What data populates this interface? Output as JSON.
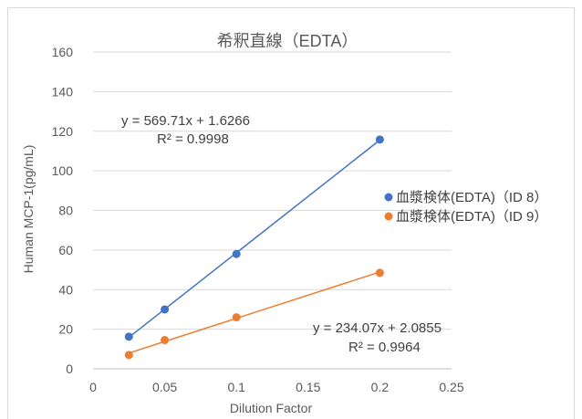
{
  "chart_data": {
    "type": "scatter",
    "title": "希釈直線（EDTA）",
    "xlabel": "Dilution Factor",
    "ylabel": "Human MCP-1(pg/mL)",
    "xlim": [
      0,
      0.25
    ],
    "ylim": [
      0,
      160
    ],
    "xticks": [
      "0",
      "0.05",
      "0.1",
      "0.15",
      "0.2",
      "0.25"
    ],
    "yticks": [
      "0",
      "20",
      "40",
      "60",
      "80",
      "100",
      "120",
      "140",
      "160"
    ],
    "grid": true,
    "legend_position": "right",
    "series": [
      {
        "name": "血漿検体(EDTA)（ID 8）",
        "color": "#4472c4",
        "x": [
          0.025,
          0.05,
          0.1,
          0.2
        ],
        "y": [
          16.2,
          30.0,
          58.0,
          115.8
        ],
        "trendline": {
          "slope": 569.71,
          "intercept": 1.6266
        },
        "equation": "y = 569.71x + 1.6266",
        "r2": "R² = 0.9998"
      },
      {
        "name": "血漿検体(EDTA)（ID 9）",
        "color": "#ed7d31",
        "x": [
          0.025,
          0.05,
          0.1,
          0.2
        ],
        "y": [
          7.0,
          14.5,
          26.0,
          48.5
        ],
        "trendline": {
          "slope": 234.07,
          "intercept": 2.0855
        },
        "equation": "y = 234.07x + 2.0855",
        "r2": "R² = 0.9964"
      }
    ]
  }
}
